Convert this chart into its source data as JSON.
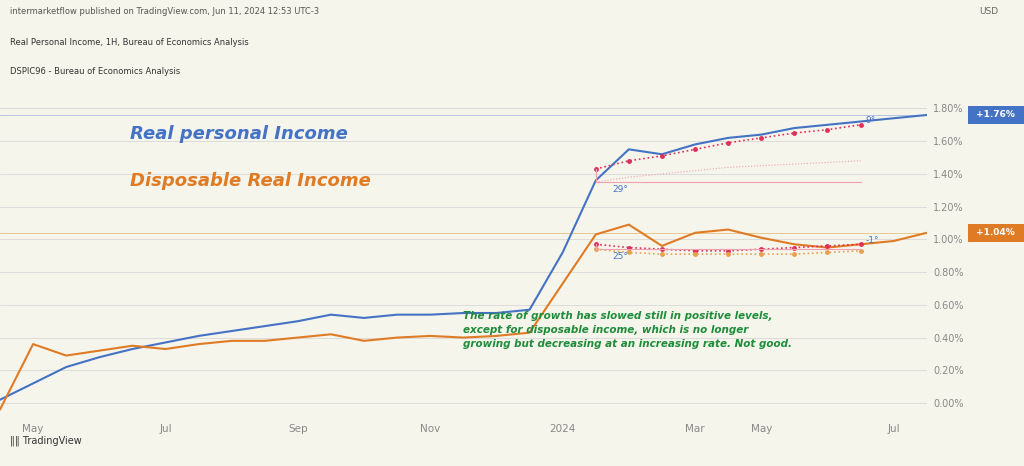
{
  "title_top": "intermarketflow published on TradingView.com, Jun 11, 2024 12:53 UTC-3",
  "subtitle1": "Real Personal Income, 1H, Bureau of Economics Analysis",
  "subtitle2": "DSPIC96 - Bureau of Economics Analysis",
  "label_blue": "Real personal Income",
  "label_orange": "Disposable Real Income",
  "annotation_text": "The rate of growth has slowed still in positive levels,\nexcept for disposable income, which is no longer\ngrowing but decreasing at an increasing rate. Not good.",
  "badge_blue": "+1.76%",
  "badge_orange": "+1.04%",
  "background_color": "#f5f5eb",
  "chart_bg": "#f5f5eb",
  "blue_color": "#4472c4",
  "orange_color": "#e07b25",
  "red_dot_color": "#e0305a",
  "orange_dot_color": "#e8a050",
  "green_text_color": "#1e8c3a",
  "blue_label_color": "#4472c4",
  "orange_label_color": "#e07b25",
  "grid_color": "#d8d8d8",
  "tick_color": "#888888",
  "header_bg": "#ffffff",
  "blue_x": [
    0,
    1,
    2,
    3,
    4,
    5,
    6,
    7,
    8,
    9,
    10,
    11,
    12,
    13,
    14,
    15,
    16,
    17,
    18,
    19,
    20,
    21,
    22,
    23,
    24,
    25,
    26,
    27,
    28
  ],
  "blue_y": [
    0.02,
    0.12,
    0.22,
    0.28,
    0.33,
    0.37,
    0.41,
    0.44,
    0.47,
    0.5,
    0.54,
    0.52,
    0.54,
    0.54,
    0.55,
    0.55,
    0.57,
    0.92,
    1.36,
    1.55,
    1.52,
    1.58,
    1.62,
    1.64,
    1.68,
    1.7,
    1.72,
    1.74,
    1.76
  ],
  "orange_x": [
    0,
    1,
    2,
    3,
    4,
    5,
    6,
    7,
    8,
    9,
    10,
    11,
    12,
    13,
    14,
    15,
    16,
    17,
    18,
    19,
    20,
    21,
    22,
    23,
    24,
    25,
    26,
    27,
    28
  ],
  "orange_y": [
    -0.04,
    0.36,
    0.29,
    0.32,
    0.35,
    0.33,
    0.36,
    0.38,
    0.38,
    0.4,
    0.42,
    0.38,
    0.4,
    0.41,
    0.4,
    0.41,
    0.43,
    0.73,
    1.03,
    1.09,
    0.96,
    1.04,
    1.06,
    1.01,
    0.97,
    0.95,
    0.97,
    0.99,
    1.04
  ],
  "red_dots_blue_x": [
    18,
    19,
    20,
    21,
    22,
    23,
    24,
    25,
    26
  ],
  "red_dots_blue_y": [
    1.43,
    1.48,
    1.51,
    1.55,
    1.59,
    1.62,
    1.65,
    1.67,
    1.7
  ],
  "red_dots_blue_lower_y": [
    1.35,
    1.38,
    1.4,
    1.42,
    1.44,
    1.45,
    1.46,
    1.47,
    1.48
  ],
  "red_dots_orange_upper_x": [
    18,
    19,
    20,
    21,
    22,
    23,
    24,
    25,
    26
  ],
  "red_dots_orange_upper_y": [
    0.97,
    0.95,
    0.94,
    0.93,
    0.93,
    0.94,
    0.95,
    0.96,
    0.97
  ],
  "red_dots_orange_lower_x": [
    18,
    19,
    20,
    21,
    22,
    23,
    24,
    25,
    26
  ],
  "red_dots_orange_lower_y": [
    0.94,
    0.92,
    0.91,
    0.91,
    0.91,
    0.91,
    0.91,
    0.92,
    0.93
  ],
  "ytick_vals": [
    0.0,
    0.2,
    0.4,
    0.6,
    0.8,
    1.0,
    1.2,
    1.4,
    1.6,
    1.8
  ],
  "ytick_labels": [
    "0.00%",
    "0.20%",
    "0.40%",
    "0.60%",
    "0.80%",
    "1.00%",
    "1.20%",
    "1.40%",
    "1.60%",
    "1.80%"
  ],
  "xtick_positions": [
    1,
    5,
    9,
    13,
    17,
    21,
    23,
    27
  ],
  "xtick_labels": [
    "May",
    "Jul",
    "Sep",
    "Nov",
    "2024",
    "Mar",
    "May",
    "Jul"
  ],
  "ylim": [
    -0.1,
    1.95
  ],
  "xlim": [
    0,
    28
  ]
}
